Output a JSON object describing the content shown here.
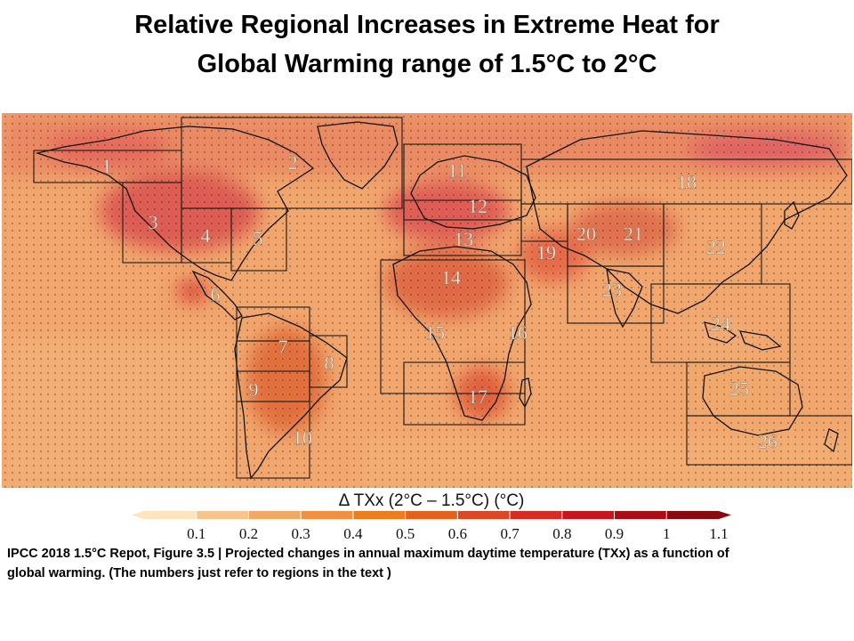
{
  "title": {
    "line1": "Relative Regional Increases in Extreme Heat for",
    "line2": "Global Warming range of 1.5°C to 2°C"
  },
  "map": {
    "background_color": "#ee9a5c",
    "ocean_color": "#f1a66d",
    "region_labels": [
      "1",
      "2",
      "3",
      "4",
      "5",
      "6",
      "7",
      "8",
      "9",
      "10",
      "11",
      "12",
      "13",
      "14",
      "15",
      "16",
      "17",
      "18",
      "19",
      "20",
      "21",
      "22",
      "23",
      "24",
      "25",
      "26"
    ]
  },
  "colorbar": {
    "label": "Δ TXx (2°C – 1.5°C) (°C)",
    "ticks": [
      "0.1",
      "0.2",
      "0.3",
      "0.4",
      "0.5",
      "0.6",
      "0.7",
      "0.8",
      "0.9",
      "1",
      "1.1"
    ],
    "colors": [
      "#fde4bd",
      "#f8c48e",
      "#f4a866",
      "#f09040",
      "#ec7d1e",
      "#e4621e",
      "#dc4823",
      "#d62c22",
      "#c8151b",
      "#a80e14",
      "#8b0a0f"
    ]
  },
  "caption": {
    "line1": "IPCC 2018 1.5°C Repot,  Figure 3.5 | Projected changes in annual maximum daytime temperature (TXx) as a function of",
    "line2": "global warming. (The numbers just refer to regions in the text )"
  }
}
